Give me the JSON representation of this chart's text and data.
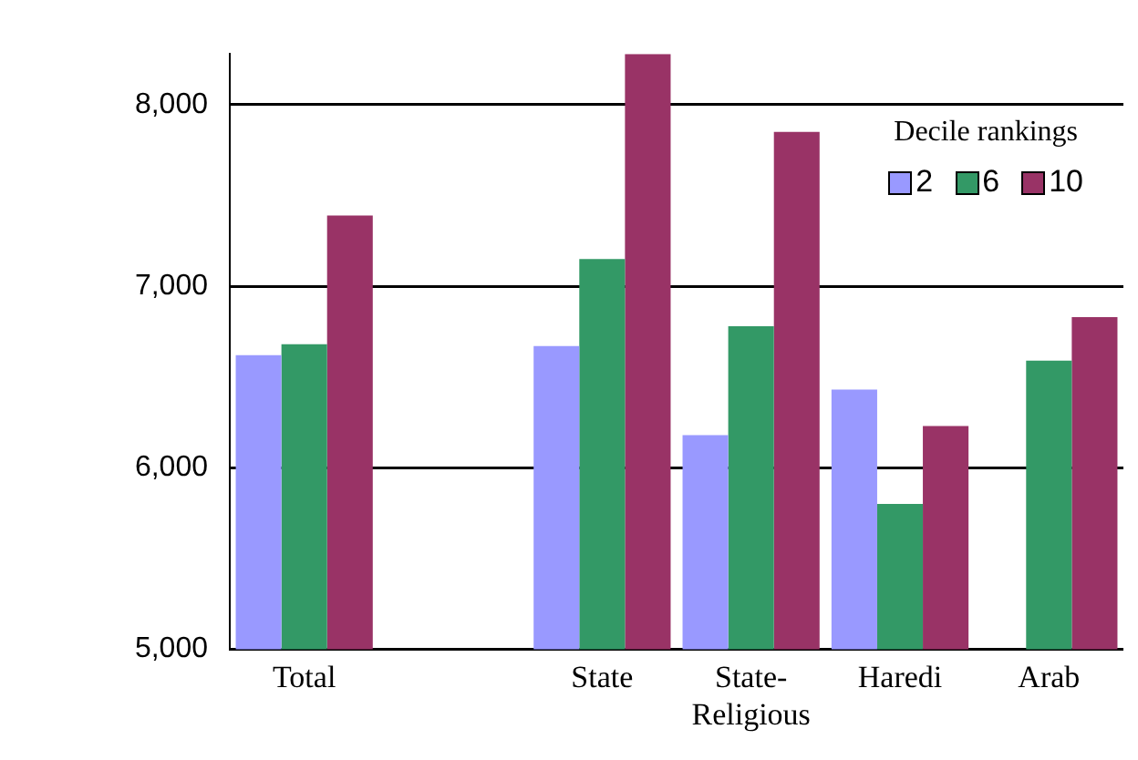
{
  "chart_data": {
    "type": "bar",
    "categories": [
      "Total",
      null,
      "State",
      "State-Religious",
      "Haredi",
      "Arab"
    ],
    "legend_title": "Decile rankings",
    "series": [
      {
        "name": "2",
        "color": "#9999ff",
        "values": [
          6620,
          null,
          6670,
          6180,
          6430,
          null
        ]
      },
      {
        "name": "6",
        "color": "#339966",
        "values": [
          6680,
          null,
          7150,
          6780,
          5800,
          6590
        ]
      },
      {
        "name": "10",
        "color": "#993366",
        "values": [
          7390,
          null,
          8280,
          7850,
          6230,
          6830
        ]
      }
    ],
    "ylim": [
      5000,
      8280
    ],
    "yticks": [
      {
        "value": 5000,
        "label": "5,000"
      },
      {
        "value": 6000,
        "label": "6,000"
      },
      {
        "value": 7000,
        "label": "7,000"
      },
      {
        "value": 8000,
        "label": "8,000"
      }
    ],
    "grid": "y",
    "legend": "top right"
  }
}
